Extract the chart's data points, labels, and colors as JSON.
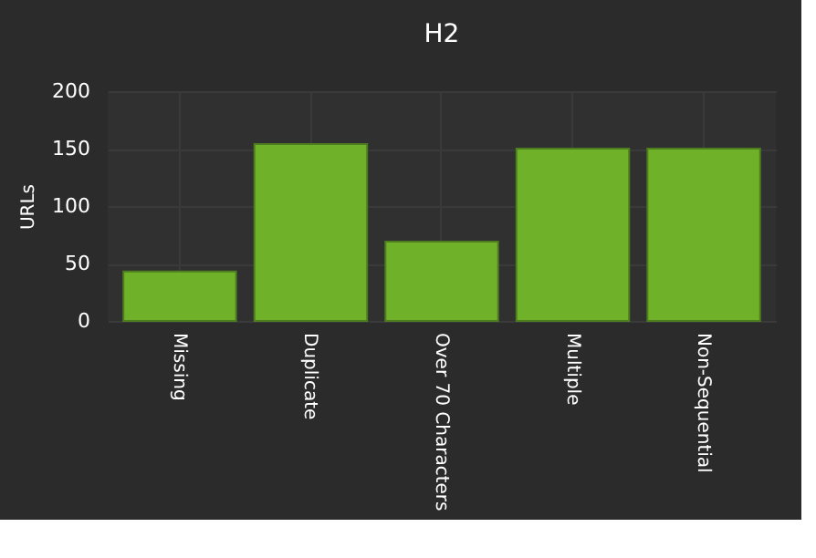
{
  "chart_data": {
    "type": "bar",
    "title": "H2",
    "ylabel": "URLs",
    "categories": [
      "Missing",
      "Duplicate",
      "Over 70 Characters",
      "Multiple",
      "Non-Sequential"
    ],
    "values": [
      43,
      154,
      69,
      150,
      150
    ],
    "color": "#6fb22a",
    "ylim": [
      0,
      200
    ],
    "yticks": [
      0,
      50,
      100,
      150,
      200
    ],
    "grid": true
  }
}
